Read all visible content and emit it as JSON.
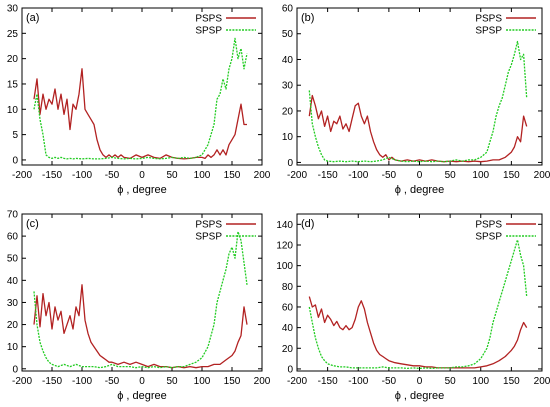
{
  "colors": {
    "PSPS": "#b22222",
    "SPSP": "#22cc22",
    "axis": "#000000",
    "frame": "#000000"
  },
  "chart_data": [
    {
      "type": "line",
      "panel_label": "(a)",
      "xlabel": "ϕ , degree",
      "xlim": [
        -200,
        200
      ],
      "ylim": [
        -1,
        30
      ],
      "xticks": [
        -200,
        -150,
        -100,
        -50,
        0,
        50,
        100,
        150,
        200
      ],
      "yticks": [
        0,
        5,
        10,
        15,
        20,
        25,
        30
      ],
      "legend_position": "top-right",
      "series": [
        {
          "name": "PSPS",
          "key": "PSPS",
          "x": [
            -180,
            -175,
            -170,
            -165,
            -160,
            -155,
            -150,
            -145,
            -140,
            -135,
            -130,
            -125,
            -120,
            -115,
            -110,
            -105,
            -100,
            -95,
            -90,
            -85,
            -80,
            -75,
            -70,
            -65,
            -60,
            -55,
            -50,
            -45,
            -40,
            -35,
            -30,
            -20,
            -10,
            0,
            10,
            20,
            30,
            40,
            50,
            60,
            70,
            80,
            90,
            100,
            105,
            110,
            115,
            120,
            125,
            130,
            135,
            140,
            145,
            150,
            155,
            160,
            165,
            170,
            175
          ],
          "values": [
            12,
            16,
            9,
            13,
            10,
            12,
            11,
            14,
            10,
            13,
            9,
            12,
            6,
            11,
            10,
            13,
            18,
            10,
            9,
            8,
            7,
            4,
            2,
            1,
            0.5,
            1,
            0.5,
            1,
            0.5,
            1,
            0.5,
            0.3,
            1,
            0.5,
            1,
            0.5,
            0.3,
            1,
            0.5,
            0.3,
            0.2,
            0.3,
            0.5,
            0.5,
            0.3,
            1,
            0.5,
            1,
            2,
            1,
            2,
            1,
            3,
            4,
            5,
            8,
            11,
            7,
            7
          ]
        },
        {
          "name": "SPSP",
          "key": "SPSP",
          "x": [
            -180,
            -175,
            -170,
            -165,
            -160,
            -155,
            -150,
            -145,
            -140,
            -135,
            -130,
            -125,
            -120,
            -115,
            -110,
            -100,
            -90,
            -80,
            -70,
            -60,
            -50,
            -40,
            -30,
            -20,
            -10,
            0,
            10,
            20,
            30,
            40,
            50,
            60,
            70,
            80,
            90,
            100,
            105,
            110,
            115,
            120,
            125,
            130,
            135,
            140,
            145,
            150,
            155,
            160,
            165,
            170,
            175
          ],
          "values": [
            10,
            13,
            8,
            5,
            1,
            0.5,
            0.3,
            0.5,
            0.3,
            0.5,
            0.3,
            0.2,
            0.3,
            0.2,
            0.3,
            0.2,
            0.3,
            0.2,
            0.2,
            0.3,
            0.5,
            0.3,
            0.2,
            0.3,
            0.2,
            0.3,
            0.5,
            0.3,
            0.2,
            0.3,
            0.5,
            0.3,
            0.5,
            0.3,
            0.5,
            1,
            2,
            3,
            5,
            7,
            12,
            13,
            16,
            14,
            18,
            20,
            24,
            20,
            22,
            18,
            21
          ]
        }
      ]
    },
    {
      "type": "line",
      "panel_label": "(b)",
      "xlabel": "ϕ , degree",
      "xlim": [
        -200,
        200
      ],
      "ylim": [
        -1,
        60
      ],
      "xticks": [
        -200,
        -150,
        -100,
        -50,
        0,
        50,
        100,
        150,
        200
      ],
      "yticks": [
        0,
        10,
        20,
        30,
        40,
        50,
        60
      ],
      "legend_position": "top-right",
      "series": [
        {
          "name": "PSPS",
          "key": "PSPS",
          "x": [
            -180,
            -175,
            -170,
            -165,
            -160,
            -155,
            -150,
            -145,
            -140,
            -135,
            -130,
            -125,
            -120,
            -115,
            -110,
            -105,
            -100,
            -95,
            -90,
            -85,
            -80,
            -75,
            -70,
            -65,
            -60,
            -55,
            -50,
            -45,
            -40,
            -30,
            -20,
            -10,
            0,
            10,
            20,
            30,
            40,
            50,
            60,
            70,
            80,
            90,
            100,
            110,
            120,
            130,
            140,
            145,
            150,
            155,
            160,
            165,
            170,
            175
          ],
          "values": [
            18,
            26,
            22,
            17,
            20,
            14,
            18,
            12,
            16,
            15,
            18,
            13,
            15,
            12,
            17,
            22,
            23,
            18,
            15,
            18,
            12,
            8,
            5,
            3,
            2,
            3,
            1,
            2,
            1,
            0.5,
            1,
            0.5,
            1,
            0.5,
            1,
            0.5,
            0.3,
            0.5,
            0.3,
            0.5,
            0.3,
            0.5,
            0.3,
            0.5,
            1,
            1,
            2,
            3,
            4,
            6,
            10,
            8,
            18,
            14
          ]
        },
        {
          "name": "SPSP",
          "key": "SPSP",
          "x": [
            -180,
            -175,
            -170,
            -165,
            -160,
            -155,
            -150,
            -140,
            -130,
            -120,
            -110,
            -100,
            -90,
            -80,
            -70,
            -60,
            -50,
            -40,
            -30,
            -20,
            -10,
            0,
            10,
            20,
            30,
            40,
            50,
            60,
            70,
            80,
            90,
            100,
            110,
            115,
            120,
            125,
            130,
            135,
            140,
            145,
            150,
            155,
            160,
            165,
            170,
            175
          ],
          "values": [
            28,
            15,
            10,
            6,
            3,
            1,
            0.5,
            0.3,
            0.5,
            0.3,
            0.5,
            0.3,
            0.5,
            0.3,
            0.5,
            1,
            2,
            1,
            0.5,
            0.3,
            0.5,
            0.3,
            0.5,
            0.3,
            0.5,
            0.3,
            0.5,
            1,
            0.5,
            1,
            1,
            2,
            4,
            8,
            12,
            18,
            22,
            25,
            30,
            35,
            38,
            42,
            47,
            40,
            42,
            25
          ]
        }
      ]
    },
    {
      "type": "line",
      "panel_label": "(c)",
      "xlabel": "ϕ , degree",
      "xlim": [
        -200,
        200
      ],
      "ylim": [
        -1,
        70
      ],
      "xticks": [
        -200,
        -150,
        -100,
        -50,
        0,
        50,
        100,
        150,
        200
      ],
      "yticks": [
        0,
        10,
        20,
        30,
        40,
        50,
        60,
        70
      ],
      "legend_position": "top-right",
      "series": [
        {
          "name": "PSPS",
          "key": "PSPS",
          "x": [
            -180,
            -175,
            -170,
            -165,
            -160,
            -155,
            -150,
            -145,
            -140,
            -135,
            -130,
            -125,
            -120,
            -115,
            -110,
            -105,
            -100,
            -95,
            -90,
            -85,
            -80,
            -75,
            -70,
            -65,
            -60,
            -55,
            -50,
            -40,
            -30,
            -20,
            -10,
            0,
            10,
            20,
            30,
            40,
            50,
            60,
            70,
            80,
            90,
            100,
            110,
            120,
            130,
            140,
            150,
            155,
            160,
            165,
            170,
            175
          ],
          "values": [
            20,
            33,
            19,
            34,
            24,
            30,
            18,
            28,
            22,
            26,
            16,
            20,
            24,
            18,
            28,
            24,
            38,
            22,
            16,
            12,
            10,
            8,
            6,
            5,
            4,
            3,
            3,
            2,
            3,
            2,
            3,
            2,
            1,
            2,
            1,
            1,
            0.5,
            1,
            0.5,
            1,
            0.5,
            1,
            1,
            2,
            2,
            4,
            6,
            8,
            12,
            15,
            28,
            20
          ]
        },
        {
          "name": "SPSP",
          "key": "SPSP",
          "x": [
            -180,
            -175,
            -170,
            -165,
            -160,
            -155,
            -150,
            -140,
            -130,
            -120,
            -110,
            -100,
            -90,
            -80,
            -70,
            -60,
            -50,
            -40,
            -30,
            -20,
            -10,
            0,
            10,
            20,
            30,
            40,
            50,
            60,
            70,
            80,
            90,
            100,
            110,
            115,
            120,
            125,
            130,
            135,
            140,
            145,
            150,
            155,
            160,
            165,
            170,
            175
          ],
          "values": [
            35,
            20,
            12,
            8,
            5,
            3,
            2,
            1,
            2,
            1,
            2,
            1,
            1,
            1,
            0.5,
            1,
            2,
            1,
            1,
            1,
            0.5,
            1,
            0.5,
            1,
            0.5,
            1,
            0.5,
            1,
            1,
            2,
            3,
            5,
            10,
            15,
            20,
            30,
            35,
            40,
            45,
            52,
            55,
            50,
            62,
            58,
            48,
            38
          ]
        }
      ]
    },
    {
      "type": "line",
      "panel_label": "(d)",
      "xlabel": "ϕ , degree",
      "xlim": [
        -200,
        200
      ],
      "ylim": [
        -2,
        150
      ],
      "xticks": [
        -200,
        -150,
        -100,
        -50,
        0,
        50,
        100,
        150,
        200
      ],
      "yticks": [
        0,
        20,
        40,
        60,
        80,
        100,
        120,
        140
      ],
      "legend_position": "top-right",
      "series": [
        {
          "name": "PSPS",
          "key": "PSPS",
          "x": [
            -180,
            -175,
            -170,
            -165,
            -160,
            -155,
            -150,
            -145,
            -140,
            -135,
            -130,
            -125,
            -120,
            -115,
            -110,
            -105,
            -100,
            -95,
            -90,
            -85,
            -80,
            -75,
            -70,
            -65,
            -60,
            -55,
            -50,
            -40,
            -30,
            -20,
            -10,
            0,
            10,
            20,
            30,
            40,
            50,
            60,
            70,
            80,
            90,
            100,
            110,
            120,
            130,
            140,
            150,
            155,
            160,
            165,
            170,
            175
          ],
          "values": [
            70,
            60,
            62,
            50,
            58,
            45,
            52,
            48,
            42,
            46,
            40,
            38,
            42,
            38,
            40,
            48,
            60,
            66,
            58,
            45,
            35,
            25,
            18,
            14,
            12,
            10,
            8,
            6,
            5,
            4,
            3,
            3,
            2,
            2,
            1,
            1,
            1,
            1,
            1,
            1,
            1,
            2,
            3,
            5,
            8,
            12,
            18,
            22,
            28,
            38,
            45,
            40
          ]
        },
        {
          "name": "SPSP",
          "key": "SPSP",
          "x": [
            -180,
            -175,
            -170,
            -165,
            -160,
            -155,
            -150,
            -140,
            -130,
            -120,
            -110,
            -100,
            -90,
            -80,
            -70,
            -60,
            -50,
            -40,
            -30,
            -20,
            -10,
            0,
            10,
            20,
            30,
            40,
            50,
            60,
            70,
            80,
            90,
            100,
            110,
            115,
            120,
            125,
            130,
            135,
            140,
            145,
            150,
            155,
            160,
            165,
            170,
            175
          ],
          "values": [
            60,
            45,
            30,
            20,
            12,
            8,
            5,
            3,
            2,
            2,
            1,
            1,
            1,
            1,
            1,
            2,
            1,
            1,
            1,
            0.5,
            1,
            0.5,
            1,
            0.5,
            1,
            1,
            1,
            2,
            2,
            3,
            5,
            10,
            20,
            30,
            45,
            55,
            65,
            75,
            85,
            95,
            105,
            115,
            125,
            110,
            100,
            70
          ]
        }
      ]
    }
  ]
}
